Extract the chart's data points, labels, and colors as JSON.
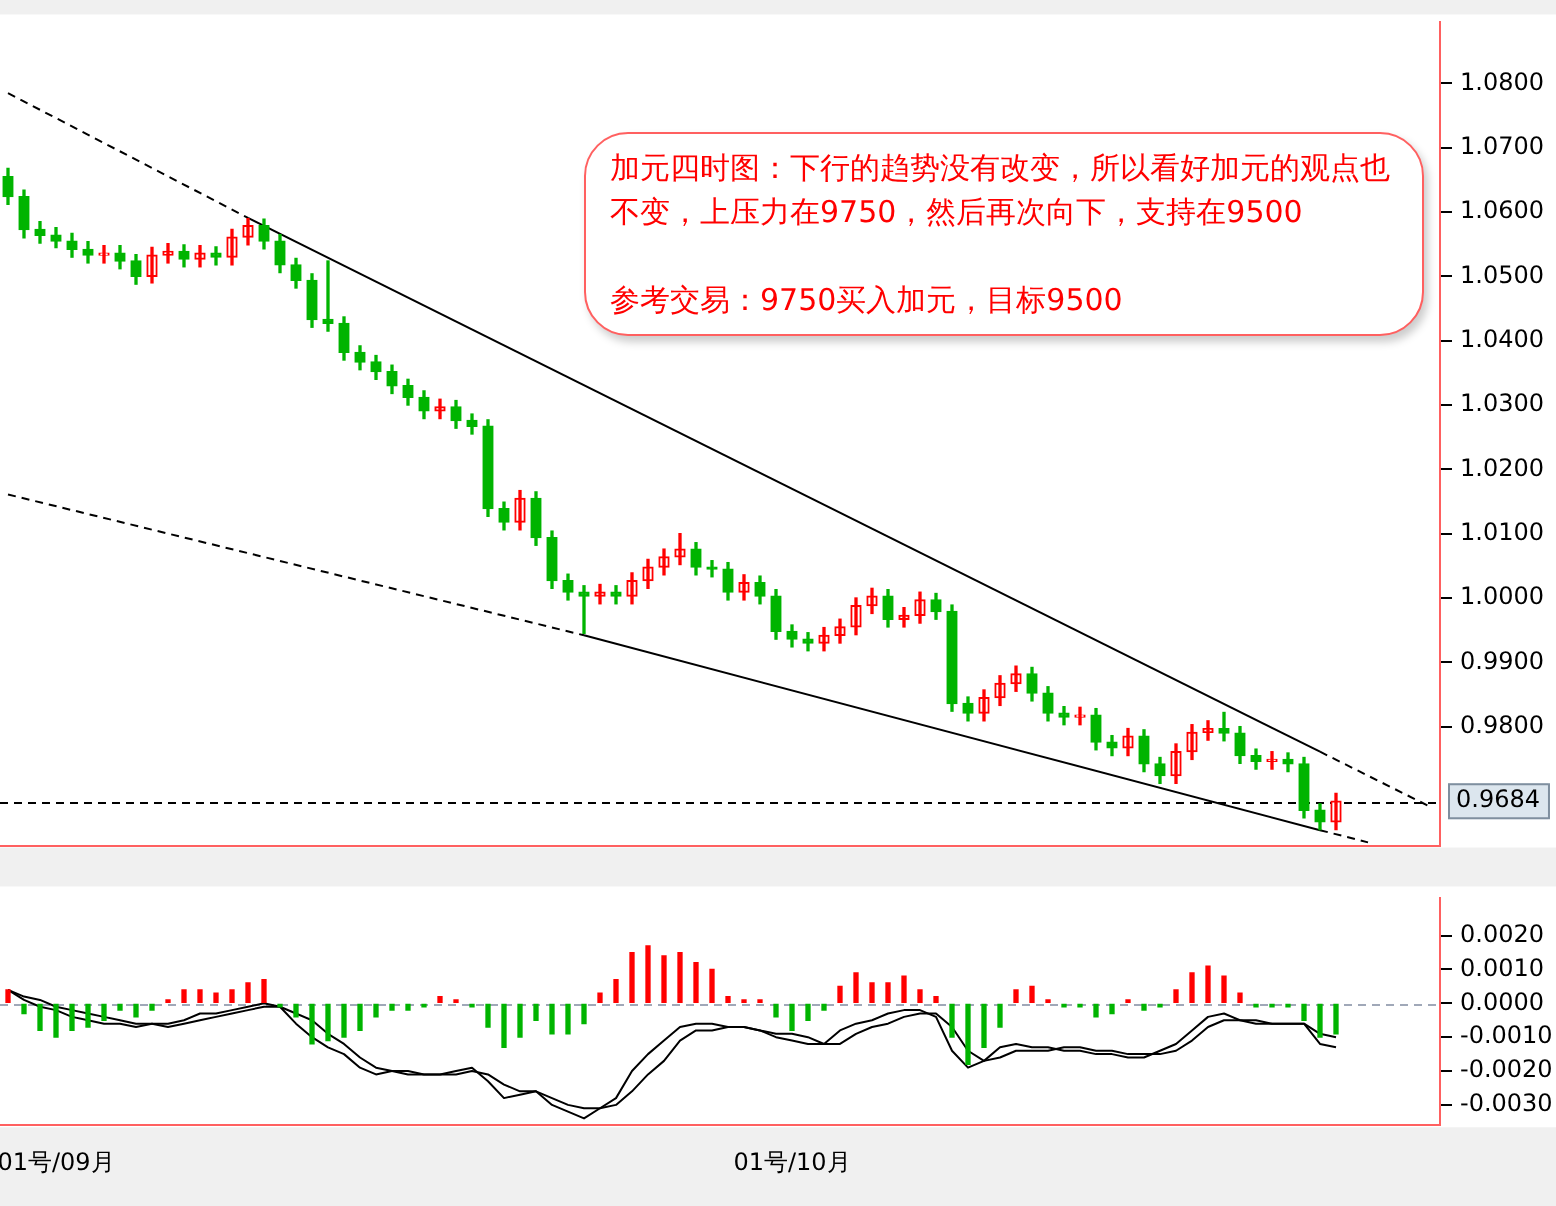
{
  "chart_data": [
    {
      "type": "candlestick",
      "tick_labels": "y",
      "categories": [
        null,
        null,
        null,
        null,
        null,
        null,
        null,
        null,
        null,
        null,
        null,
        null,
        null,
        null,
        null,
        null,
        null,
        null,
        null,
        null,
        null,
        null,
        null,
        null,
        null,
        null,
        null,
        null,
        null,
        null,
        null,
        null,
        null,
        null,
        null,
        null,
        null,
        null,
        null,
        null,
        null,
        null,
        null,
        null,
        null,
        null,
        null,
        null,
        null,
        null,
        null,
        null,
        null,
        null,
        null,
        null,
        null,
        null,
        null,
        null,
        null,
        null,
        null,
        null,
        null,
        null,
        null,
        null,
        null,
        null,
        null,
        null,
        null,
        null,
        null,
        null,
        null,
        null,
        null,
        null,
        null,
        null,
        null,
        null,
        null,
        null,
        null,
        null,
        null,
        null
      ],
      "ohlc": [
        [
          1.0655,
          1.0668,
          1.0612,
          1.0624
        ],
        [
          1.0624,
          1.0634,
          1.056,
          1.0573
        ],
        [
          1.0573,
          1.0585,
          1.0552,
          1.0564
        ],
        [
          1.0564,
          1.0576,
          1.0545,
          1.0555
        ],
        [
          1.0555,
          1.0567,
          1.053,
          1.0542
        ],
        [
          1.0542,
          1.0554,
          1.0521,
          1.0533
        ],
        [
          1.0533,
          1.0548,
          1.0521,
          1.0536
        ],
        [
          1.0536,
          1.0548,
          1.0512,
          1.0524
        ],
        [
          1.0524,
          1.0534,
          1.0488,
          1.05
        ],
        [
          1.05,
          1.0545,
          1.049,
          1.0533
        ],
        [
          1.0533,
          1.0551,
          1.0521,
          1.0539
        ],
        [
          1.0539,
          1.0549,
          1.0515,
          1.0527
        ],
        [
          1.0527,
          1.0548,
          1.0515,
          1.0536
        ],
        [
          1.0536,
          1.0546,
          1.0518,
          1.053
        ],
        [
          1.053,
          1.0573,
          1.0518,
          1.0561
        ],
        [
          1.0561,
          1.059,
          1.0549,
          1.0579
        ],
        [
          1.0579,
          1.0589,
          1.0543,
          1.0555
        ],
        [
          1.0555,
          1.0565,
          1.0506,
          1.0518
        ],
        [
          1.0518,
          1.0528,
          1.0482,
          1.0494
        ],
        [
          1.0494,
          1.0504,
          1.0421,
          1.0433
        ],
        [
          1.0433,
          1.0524,
          1.0415,
          1.0427
        ],
        [
          1.0427,
          1.0437,
          1.037,
          1.0382
        ],
        [
          1.0382,
          1.0392,
          1.0355,
          1.0367
        ],
        [
          1.0367,
          1.0377,
          1.034,
          1.0352
        ],
        [
          1.0352,
          1.0362,
          1.0318,
          1.033
        ],
        [
          1.033,
          1.034,
          1.03,
          1.0312
        ],
        [
          1.0312,
          1.0322,
          1.0279,
          1.0291
        ],
        [
          1.0291,
          1.0309,
          1.0279,
          1.0297
        ],
        [
          1.0297,
          1.0307,
          1.0264,
          1.0276
        ],
        [
          1.0276,
          1.0286,
          1.0255,
          1.0267
        ],
        [
          1.0267,
          1.0277,
          1.0127,
          1.0139
        ],
        [
          1.0139,
          1.0149,
          1.0106,
          1.0118
        ],
        [
          1.0118,
          1.0167,
          1.0106,
          1.0155
        ],
        [
          1.0155,
          1.0165,
          1.0082,
          1.0094
        ],
        [
          1.0094,
          1.0104,
          1.0015,
          1.0027
        ],
        [
          1.0027,
          1.0037,
          0.9997,
          1.0009
        ],
        [
          1.0009,
          1.0019,
          0.9945,
          1.0003
        ],
        [
          1.0003,
          1.0021,
          0.9991,
          1.0009
        ],
        [
          1.0009,
          1.0019,
          0.9991,
          1.0003
        ],
        [
          1.0003,
          1.0039,
          0.9991,
          1.0027
        ],
        [
          1.0027,
          1.006,
          1.0015,
          1.0048
        ],
        [
          1.0048,
          1.0076,
          1.0036,
          1.0064
        ],
        [
          1.0064,
          1.01,
          1.0052,
          1.0076
        ],
        [
          1.0076,
          1.0086,
          1.0036,
          1.0048
        ],
        [
          1.0048,
          1.0058,
          1.0033,
          1.0045
        ],
        [
          1.0045,
          1.0055,
          0.9997,
          1.0009
        ],
        [
          1.0009,
          1.0036,
          0.9997,
          1.0024
        ],
        [
          1.0024,
          1.0034,
          0.9991,
          1.0003
        ],
        [
          1.0003,
          1.0013,
          0.9936,
          0.9948
        ],
        [
          0.9948,
          0.9958,
          0.9924,
          0.9936
        ],
        [
          0.9936,
          0.9946,
          0.9918,
          0.993
        ],
        [
          0.993,
          0.9954,
          0.9918,
          0.9942
        ],
        [
          0.9942,
          0.9967,
          0.993,
          0.9955
        ],
        [
          0.9955,
          1.0,
          0.9943,
          0.9988
        ],
        [
          0.9988,
          1.0015,
          0.9976,
          1.0003
        ],
        [
          1.0003,
          1.0013,
          0.9955,
          0.9967
        ],
        [
          0.9967,
          0.9985,
          0.9955,
          0.9973
        ],
        [
          0.9973,
          1.0009,
          0.9961,
          0.9997
        ],
        [
          0.9997,
          1.0007,
          0.9967,
          0.9979
        ],
        [
          0.9979,
          0.9989,
          0.9824,
          0.9836
        ],
        [
          0.9836,
          0.9846,
          0.9809,
          0.9821
        ],
        [
          0.9821,
          0.9857,
          0.9809,
          0.9845
        ],
        [
          0.9845,
          0.9879,
          0.9833,
          0.9867
        ],
        [
          0.9867,
          0.9894,
          0.9855,
          0.9882
        ],
        [
          0.9882,
          0.9892,
          0.984,
          0.9852
        ],
        [
          0.9852,
          0.9862,
          0.9809,
          0.9821
        ],
        [
          0.9821,
          0.9831,
          0.9803,
          0.9815
        ],
        [
          0.9815,
          0.983,
          0.9803,
          0.9818
        ],
        [
          0.9818,
          0.9828,
          0.9764,
          0.9776
        ],
        [
          0.9776,
          0.9786,
          0.9755,
          0.9767
        ],
        [
          0.9767,
          0.9797,
          0.9755,
          0.9785
        ],
        [
          0.9785,
          0.9795,
          0.973,
          0.9742
        ],
        [
          0.9742,
          0.9752,
          0.9712,
          0.9724
        ],
        [
          0.9724,
          0.9773,
          0.9712,
          0.9761
        ],
        [
          0.9761,
          0.9803,
          0.9749,
          0.9791
        ],
        [
          0.9791,
          0.9809,
          0.9779,
          0.9797
        ],
        [
          0.9797,
          0.9822,
          0.9778,
          0.979
        ],
        [
          0.979,
          0.98,
          0.9743,
          0.9755
        ],
        [
          0.9755,
          0.9765,
          0.9734,
          0.9746
        ],
        [
          0.9746,
          0.9761,
          0.9734,
          0.9749
        ],
        [
          0.9749,
          0.9759,
          0.973,
          0.9742
        ],
        [
          0.9742,
          0.9752,
          0.9658,
          0.967
        ],
        [
          0.967,
          0.968,
          0.964,
          0.9652
        ],
        [
          0.9652,
          0.9696,
          0.964,
          0.9684
        ],
        null,
        null,
        null,
        null,
        null,
        null
      ],
      "colors": [
        "#00b400",
        "#00b400",
        "#00b400",
        "#00b400",
        "#00b400",
        "#00b400",
        "#ff0000",
        "#00b400",
        "#00b400",
        "#ff0000",
        "#ff0000",
        "#00b400",
        "#ff0000",
        "#00b400",
        "#ff0000",
        "#ff0000",
        "#00b400",
        "#00b400",
        "#00b400",
        "#00b400",
        "#00b400",
        "#00b400",
        "#00b400",
        "#00b400",
        "#00b400",
        "#00b400",
        "#00b400",
        "#ff0000",
        "#00b400",
        "#00b400",
        "#00b400",
        "#00b400",
        "#ff0000",
        "#00b400",
        "#00b400",
        "#00b400",
        "#00b400",
        "#ff0000",
        "#00b400",
        "#ff0000",
        "#ff0000",
        "#ff0000",
        "#ff0000",
        "#00b400",
        "#00b400",
        "#00b400",
        "#ff0000",
        "#00b400",
        "#00b400",
        "#00b400",
        "#00b400",
        "#ff0000",
        "#ff0000",
        "#ff0000",
        "#ff0000",
        "#00b400",
        "#ff0000",
        "#ff0000",
        "#00b400",
        "#00b400",
        "#00b400",
        "#ff0000",
        "#ff0000",
        "#ff0000",
        "#00b400",
        "#00b400",
        "#00b400",
        "#ff0000",
        "#00b400",
        "#00b400",
        "#ff0000",
        "#00b400",
        "#00b400",
        "#ff0000",
        "#ff0000",
        "#ff0000",
        "#00b400",
        "#00b400",
        "#00b400",
        "#ff0000",
        "#00b400",
        "#00b400",
        "#00b400",
        "#ff0000",
        null,
        null,
        null,
        null,
        null,
        null
      ],
      "series": [
        {
          "type": "line",
          "color": "#000000",
          "line_style": "dashed",
          "values": [
            1.0785,
            null,
            null,
            null,
            null,
            null,
            null,
            null,
            null,
            null,
            null,
            null,
            null,
            null,
            null,
            1.0591,
            null,
            null,
            null,
            null,
            null,
            null,
            null,
            null,
            null,
            null,
            null,
            null,
            null,
            null,
            null,
            null,
            null,
            null,
            null,
            null,
            null,
            null,
            null,
            null,
            null,
            null,
            null,
            null,
            null,
            null,
            null,
            null,
            null,
            null,
            null,
            null,
            null,
            null,
            null,
            null,
            null,
            null,
            null,
            null,
            null,
            null,
            null,
            null,
            null,
            null,
            null,
            null,
            null,
            null,
            null,
            null,
            null,
            null,
            null,
            null,
            null,
            null,
            null,
            null,
            null,
            null,
            null,
            null,
            null,
            null,
            null,
            null,
            null,
            null
          ]
        },
        {
          "type": "line",
          "color": "#000000",
          "line_style": "solid",
          "values": [
            null,
            null,
            null,
            null,
            null,
            null,
            null,
            null,
            null,
            null,
            null,
            null,
            null,
            null,
            null,
            1.0591,
            null,
            null,
            null,
            null,
            null,
            null,
            null,
            null,
            null,
            null,
            null,
            null,
            null,
            null,
            null,
            null,
            null,
            null,
            null,
            null,
            null,
            null,
            null,
            null,
            null,
            null,
            null,
            null,
            null,
            null,
            null,
            null,
            null,
            null,
            null,
            null,
            null,
            null,
            null,
            null,
            null,
            null,
            null,
            null,
            null,
            null,
            null,
            null,
            null,
            null,
            null,
            null,
            null,
            null,
            null,
            null,
            null,
            null,
            null,
            null,
            null,
            null,
            null,
            null,
            null,
            null,
            0.9761,
            null,
            null,
            null,
            null,
            null,
            null,
            null
          ]
        },
        {
          "type": "line",
          "color": "#000000",
          "line_style": "dashed",
          "values": [
            null,
            null,
            null,
            null,
            null,
            null,
            null,
            null,
            null,
            null,
            null,
            null,
            null,
            null,
            null,
            null,
            null,
            null,
            null,
            null,
            null,
            null,
            null,
            null,
            null,
            null,
            null,
            null,
            null,
            null,
            null,
            null,
            null,
            null,
            null,
            null,
            null,
            null,
            null,
            null,
            null,
            null,
            null,
            null,
            null,
            null,
            null,
            null,
            null,
            null,
            null,
            null,
            null,
            null,
            null,
            null,
            null,
            null,
            null,
            null,
            null,
            null,
            null,
            null,
            null,
            null,
            null,
            null,
            null,
            null,
            null,
            null,
            null,
            null,
            null,
            null,
            null,
            null,
            null,
            null,
            null,
            null,
            0.9761,
            null,
            null,
            null,
            null,
            null,
            null,
            0.9674
          ]
        },
        {
          "type": "line",
          "color": "#000000",
          "line_style": "dashed",
          "values": [
            1.0161,
            null,
            null,
            null,
            null,
            null,
            null,
            null,
            null,
            null,
            null,
            null,
            null,
            null,
            null,
            null,
            null,
            null,
            null,
            null,
            null,
            null,
            null,
            null,
            null,
            null,
            null,
            null,
            null,
            null,
            null,
            null,
            null,
            null,
            null,
            null,
            0.9942,
            null,
            null,
            null,
            null,
            null,
            null,
            null,
            null,
            null,
            null,
            null,
            null,
            null,
            null,
            null,
            null,
            null,
            null,
            null,
            null,
            null,
            null,
            null,
            null,
            null,
            null,
            null,
            null,
            null,
            null,
            null,
            null,
            null,
            null,
            null,
            null,
            null,
            null,
            null,
            null,
            null,
            null,
            null,
            null,
            null,
            null,
            null,
            null,
            null,
            null,
            null,
            null,
            null
          ]
        },
        {
          "type": "line",
          "color": "#000000",
          "line_style": "solid",
          "values": [
            null,
            null,
            null,
            null,
            null,
            null,
            null,
            null,
            null,
            null,
            null,
            null,
            null,
            null,
            null,
            null,
            null,
            null,
            null,
            null,
            null,
            null,
            null,
            null,
            null,
            null,
            null,
            null,
            null,
            null,
            null,
            null,
            null,
            null,
            null,
            null,
            0.9942,
            null,
            null,
            null,
            null,
            null,
            null,
            null,
            null,
            null,
            null,
            null,
            null,
            null,
            null,
            null,
            null,
            null,
            null,
            null,
            null,
            null,
            null,
            null,
            null,
            null,
            null,
            null,
            null,
            null,
            null,
            null,
            null,
            null,
            null,
            null,
            null,
            null,
            null,
            null,
            null,
            null,
            null,
            null,
            null,
            null,
            0.9639,
            null,
            null,
            null,
            null,
            null,
            null,
            null
          ]
        },
        {
          "type": "line",
          "color": "#000000",
          "line_style": "dashed",
          "values": [
            null,
            null,
            null,
            null,
            null,
            null,
            null,
            null,
            null,
            null,
            null,
            null,
            null,
            null,
            null,
            null,
            null,
            null,
            null,
            null,
            null,
            null,
            null,
            null,
            null,
            null,
            null,
            null,
            null,
            null,
            null,
            null,
            null,
            null,
            null,
            null,
            null,
            null,
            null,
            null,
            null,
            null,
            null,
            null,
            null,
            null,
            null,
            null,
            null,
            null,
            null,
            null,
            null,
            null,
            null,
            null,
            null,
            null,
            null,
            null,
            null,
            null,
            null,
            null,
            null,
            null,
            null,
            null,
            null,
            null,
            null,
            null,
            null,
            null,
            null,
            null,
            null,
            null,
            null,
            null,
            null,
            null,
            0.9639,
            null,
            null,
            0.962,
            null,
            null,
            null,
            null
          ]
        }
      ],
      "ylim": [
        0.9615,
        1.0895
      ],
      "yticks": [
        {
          "value": 0.98,
          "label": "0.9800"
        },
        {
          "value": 0.99,
          "label": "0.9900"
        },
        {
          "value": 1.0,
          "label": "1.0000"
        },
        {
          "value": 1.01,
          "label": "1.0100"
        },
        {
          "value": 1.02,
          "label": "1.0200"
        },
        {
          "value": 1.03,
          "label": "1.0300"
        },
        {
          "value": 1.04,
          "label": "1.0400"
        },
        {
          "value": 1.05,
          "label": "1.0500"
        },
        {
          "value": 1.06,
          "label": "1.0600"
        },
        {
          "value": 1.07,
          "label": "1.0700"
        },
        {
          "value": 1.08,
          "label": "1.0800"
        }
      ],
      "ref_lines": [
        {
          "axis": "y",
          "value": 0.9684,
          "label": "0.9684",
          "color": "#000000",
          "line_style": "dashed"
        }
      ],
      "annotations": [
        "加元四时图：下行的趋势没有改变，所以看好加元的观点也不变，上压力在9750，然后再次向下，支持在9500",
        "参考交易：9750买入加元，目标9500"
      ]
    },
    {
      "type": "bar",
      "categories": [
        null,
        null,
        null,
        "01号/09月",
        null,
        null,
        null,
        null,
        null,
        null,
        null,
        null,
        null,
        null,
        null,
        null,
        null,
        null,
        null,
        null,
        null,
        null,
        null,
        null,
        null,
        null,
        null,
        null,
        null,
        null,
        null,
        null,
        null,
        null,
        null,
        null,
        null,
        null,
        null,
        null,
        null,
        null,
        null,
        null,
        null,
        null,
        null,
        null,
        null,
        "01号/10月",
        null,
        null,
        null,
        null,
        null,
        null,
        null,
        null,
        null,
        null,
        null,
        null,
        null,
        null,
        null,
        null,
        null,
        null,
        null,
        null,
        null,
        null,
        null,
        null,
        null,
        null,
        null,
        null,
        null,
        null,
        null,
        null,
        null,
        null,
        null,
        null,
        null,
        null,
        null,
        null
      ],
      "values": [
        0.0004,
        -0.0003,
        -0.0008,
        -0.001,
        -0.0008,
        -0.0007,
        -0.0005,
        -0.0002,
        -0.0004,
        -0.0002,
        0.0001,
        0.0004,
        0.0004,
        0.0003,
        0.0004,
        0.0006,
        0.0007,
        -0.0001,
        -0.0004,
        -0.0012,
        -0.0011,
        -0.001,
        -0.0008,
        -0.0004,
        -0.0002,
        -0.0002,
        -0.0001,
        0.0002,
        0.0001,
        -0.0001,
        -0.0007,
        -0.0013,
        -0.001,
        -0.0005,
        -0.0009,
        -0.0009,
        -0.0006,
        0.0003,
        0.0007,
        0.0015,
        0.0017,
        0.0014,
        0.0015,
        0.0012,
        0.001,
        0.0002,
        0.0001,
        0.0001,
        -0.0004,
        -0.0008,
        -0.0005,
        -0.0002,
        0.0005,
        0.0009,
        0.0006,
        0.0006,
        0.0008,
        0.0004,
        0.0002,
        -0.001,
        -0.0018,
        -0.0013,
        -0.0007,
        0.0004,
        0.0005,
        0.0001,
        -0.0001,
        -0.0001,
        -0.0004,
        -0.0003,
        0.0001,
        -0.0002,
        -0.0001,
        0.0004,
        0.0009,
        0.0011,
        0.0008,
        0.0003,
        -0.0001,
        -0.0001,
        -0.0001,
        -0.0005,
        -0.001,
        -0.0009,
        null,
        null,
        null,
        null,
        null,
        null
      ],
      "colors": [
        "#ff0000",
        "#00b400",
        "#00b400",
        "#00b400",
        "#00b400",
        "#00b400",
        "#00b400",
        "#00b400",
        "#00b400",
        "#00b400",
        "#ff0000",
        "#ff0000",
        "#ff0000",
        "#ff0000",
        "#ff0000",
        "#ff0000",
        "#ff0000",
        "#00b400",
        "#00b400",
        "#00b400",
        "#00b400",
        "#00b400",
        "#00b400",
        "#00b400",
        "#00b400",
        "#00b400",
        "#00b400",
        "#ff0000",
        "#ff0000",
        "#00b400",
        "#00b400",
        "#00b400",
        "#00b400",
        "#00b400",
        "#00b400",
        "#00b400",
        "#00b400",
        "#ff0000",
        "#ff0000",
        "#ff0000",
        "#ff0000",
        "#ff0000",
        "#ff0000",
        "#ff0000",
        "#ff0000",
        "#ff0000",
        "#ff0000",
        "#ff0000",
        "#00b400",
        "#00b400",
        "#00b400",
        "#00b400",
        "#ff0000",
        "#ff0000",
        "#ff0000",
        "#ff0000",
        "#ff0000",
        "#ff0000",
        "#ff0000",
        "#00b400",
        "#00b400",
        "#00b400",
        "#00b400",
        "#ff0000",
        "#ff0000",
        "#ff0000",
        "#00b400",
        "#00b400",
        "#00b400",
        "#00b400",
        "#ff0000",
        "#00b400",
        "#00b400",
        "#ff0000",
        "#ff0000",
        "#ff0000",
        "#ff0000",
        "#ff0000",
        "#00b400",
        "#00b400",
        "#00b400",
        "#00b400",
        "#00b400",
        "#00b400",
        null,
        null,
        null,
        null,
        null,
        null
      ],
      "series": [
        {
          "type": "line",
          "color": "#000000",
          "values": [
            0.0004,
            0.0001,
            -0.0001,
            -0.0002,
            -0.0004,
            -0.0005,
            -0.0006,
            -0.0006,
            -0.0007,
            -0.0006,
            -0.0006,
            -0.0005,
            -0.0003,
            -0.0003,
            -0.0002,
            -0.0001,
            0.0,
            -0.0001,
            -0.0006,
            -0.001,
            -0.0013,
            -0.0015,
            -0.0019,
            -0.0021,
            -0.002,
            -0.002,
            -0.0021,
            -0.0021,
            -0.002,
            -0.0019,
            -0.0023,
            -0.0028,
            -0.0027,
            -0.0026,
            -0.003,
            -0.0032,
            -0.0034,
            -0.0031,
            -0.0028,
            -0.002,
            -0.0015,
            -0.0011,
            -0.0007,
            -0.0006,
            -0.0006,
            -0.0007,
            -0.0007,
            -0.0008,
            -0.001,
            -0.0011,
            -0.0012,
            -0.0012,
            -0.0008,
            -0.0006,
            -0.0005,
            -0.0003,
            -0.0002,
            -0.0002,
            -0.0004,
            -0.0014,
            -0.0019,
            -0.0017,
            -0.0013,
            -0.0012,
            -0.0013,
            -0.0013,
            -0.0014,
            -0.0014,
            -0.0015,
            -0.0015,
            -0.0016,
            -0.0016,
            -0.0014,
            -0.0012,
            -0.0008,
            -0.0004,
            -0.0003,
            -0.0005,
            -0.0006,
            -0.0006,
            -0.0006,
            -0.0006,
            -0.0012,
            -0.0013,
            null,
            null,
            null,
            null,
            null,
            null
          ]
        },
        {
          "type": "line",
          "color": "#000000",
          "values": [
            0.0004,
            0.0002,
            0.0001,
            -0.0001,
            -0.0002,
            -0.0003,
            -0.0004,
            -0.0005,
            -0.0006,
            -0.0006,
            -0.0007,
            -0.0006,
            -0.0005,
            -0.0004,
            -0.0003,
            -0.0002,
            -0.0001,
            -0.0001,
            -0.0003,
            -0.0005,
            -0.0009,
            -0.0012,
            -0.0016,
            -0.0019,
            -0.002,
            -0.0021,
            -0.0021,
            -0.0021,
            -0.0021,
            -0.002,
            -0.0021,
            -0.0024,
            -0.0026,
            -0.0026,
            -0.0028,
            -0.003,
            -0.0031,
            -0.0031,
            -0.003,
            -0.0026,
            -0.0021,
            -0.0017,
            -0.0011,
            -0.0008,
            -0.0008,
            -0.0007,
            -0.0007,
            -0.0008,
            -0.0009,
            -0.0009,
            -0.001,
            -0.0012,
            -0.0012,
            -0.0009,
            -0.0007,
            -0.0006,
            -0.0004,
            -0.0003,
            -0.0003,
            -0.0007,
            -0.0014,
            -0.0017,
            -0.0016,
            -0.0014,
            -0.0014,
            -0.0014,
            -0.0013,
            -0.0013,
            -0.0014,
            -0.0014,
            -0.0015,
            -0.0015,
            -0.0015,
            -0.0014,
            -0.0011,
            -0.0007,
            -0.0005,
            -0.0005,
            -0.0005,
            -0.0006,
            -0.0006,
            -0.0006,
            -0.0009,
            -0.001,
            null,
            null,
            null,
            null,
            null,
            null
          ]
        }
      ],
      "ylim": [
        -0.0036,
        0.0031
      ],
      "yticks": [
        {
          "value": -0.003,
          "label": "-0.0030"
        },
        {
          "value": -0.002,
          "label": "-0.0020"
        },
        {
          "value": -0.001,
          "label": "-0.0010"
        },
        {
          "value": 0,
          "label": "0.0000"
        },
        {
          "value": 0.001,
          "label": "0.0010"
        },
        {
          "value": 0.002,
          "label": "0.0020"
        }
      ],
      "ref_lines": [
        {
          "axis": "y",
          "value": 0,
          "color": "#a0a8b8",
          "line_style": "dashed"
        }
      ]
    }
  ]
}
